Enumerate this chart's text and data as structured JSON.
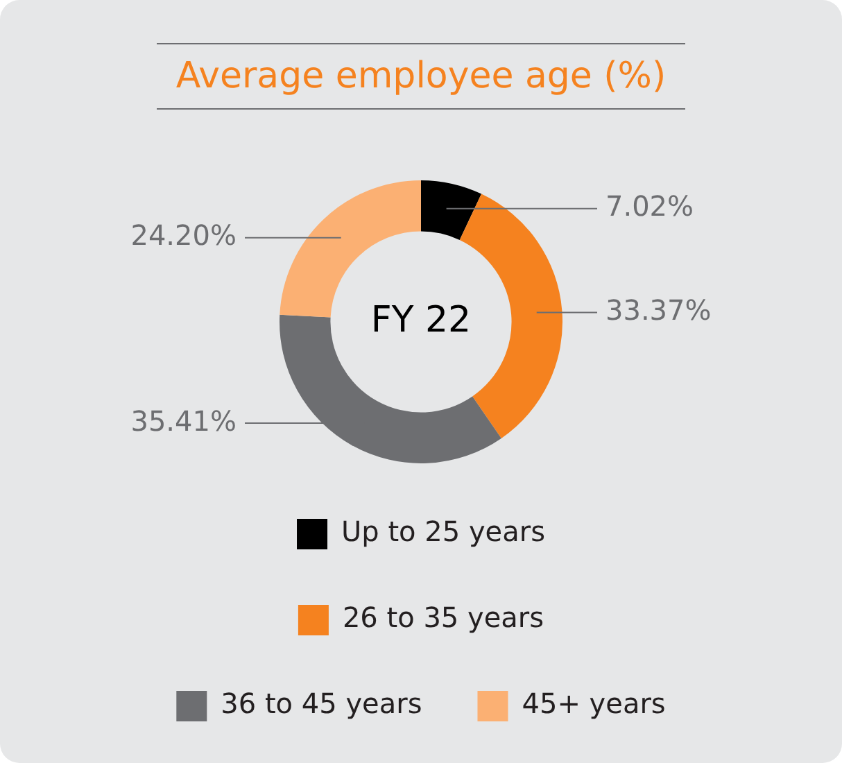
{
  "chart_data": {
    "type": "donut",
    "title": "Average employee age (%)",
    "categories": [
      "Up to 25 years",
      "26 to 35 years",
      "36 to 45 years",
      "45+ years"
    ],
    "values": [
      7.02,
      33.37,
      35.41,
      24.2
    ],
    "colors": [
      "#000000",
      "#f5821f",
      "#6d6e71",
      "#fbb073"
    ],
    "value_labels": [
      "7.02%",
      "33.37%",
      "35.41%",
      "24.20%"
    ],
    "annotations": [
      "FY 22"
    ],
    "legend": "bottom"
  }
}
